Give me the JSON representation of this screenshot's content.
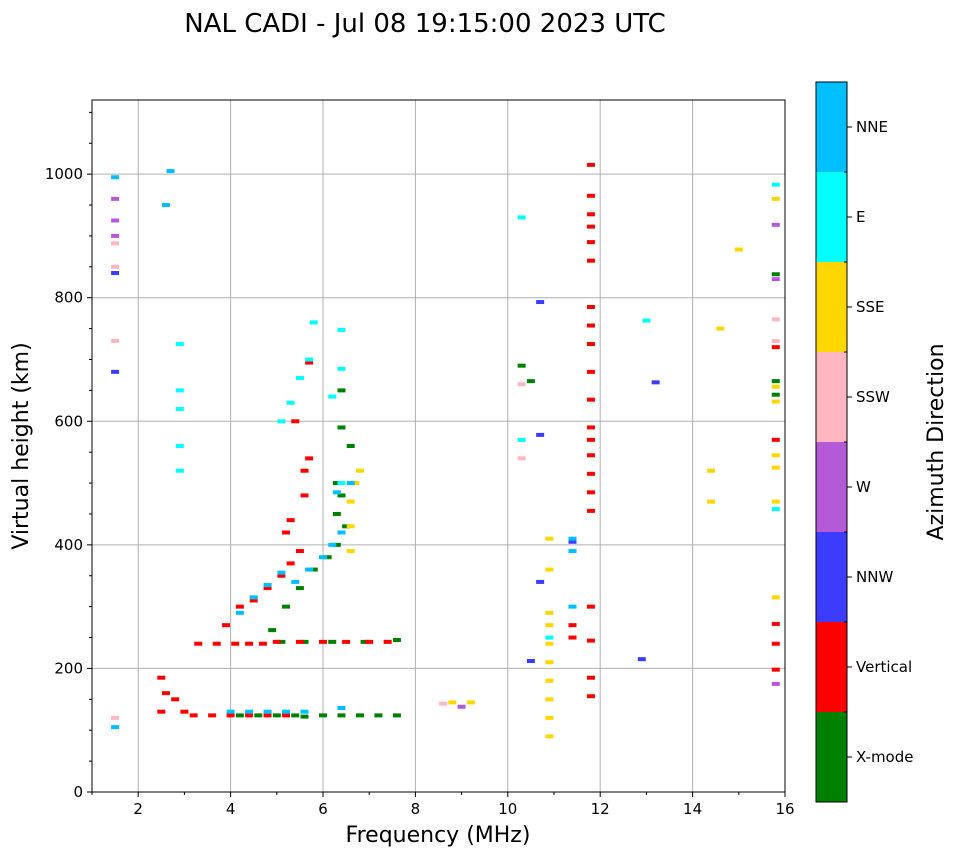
{
  "chart_data": {
    "type": "scatter",
    "title": "NAL CADI - Jul 08 19:15:00 2023 UTC",
    "xlabel": "Frequency (MHz)",
    "ylabel": "Virtual height (km)",
    "xlim": [
      1,
      16
    ],
    "ylim": [
      0,
      1120
    ],
    "xticks": [
      2,
      4,
      6,
      8,
      10,
      12,
      14,
      16
    ],
    "yticks": [
      0,
      200,
      400,
      600,
      800,
      1000
    ],
    "grid": true,
    "colorbar": {
      "label": "Azimuth Direction",
      "categories": [
        {
          "name": "X-mode",
          "color": "#008000"
        },
        {
          "name": "Vertical",
          "color": "#ff0000"
        },
        {
          "name": "NNW",
          "color": "#3c3cff"
        },
        {
          "name": "W",
          "color": "#b45ad8"
        },
        {
          "name": "SSW",
          "color": "#ffb6c1"
        },
        {
          "name": "SSE",
          "color": "#ffd700"
        },
        {
          "name": "E",
          "color": "#00ffff"
        },
        {
          "name": "NNE",
          "color": "#00bfff"
        }
      ]
    },
    "series": [
      {
        "name": "X-mode",
        "points": [
          [
            4.2,
            124
          ],
          [
            4.6,
            124
          ],
          [
            5.0,
            124
          ],
          [
            5.4,
            124
          ],
          [
            5.6,
            122
          ],
          [
            6.0,
            124
          ],
          [
            6.4,
            124
          ],
          [
            6.8,
            124
          ],
          [
            7.2,
            124
          ],
          [
            7.6,
            124
          ],
          [
            5.1,
            243
          ],
          [
            5.6,
            243
          ],
          [
            6.2,
            243
          ],
          [
            6.9,
            243
          ],
          [
            7.6,
            246
          ],
          [
            4.9,
            262
          ],
          [
            5.2,
            300
          ],
          [
            5.5,
            330
          ],
          [
            5.8,
            360
          ],
          [
            6.1,
            380
          ],
          [
            6.3,
            400
          ],
          [
            6.5,
            430
          ],
          [
            6.3,
            450
          ],
          [
            6.4,
            480
          ],
          [
            6.3,
            500
          ],
          [
            6.6,
            560
          ],
          [
            6.4,
            590
          ],
          [
            6.4,
            650
          ],
          [
            10.3,
            690
          ],
          [
            10.5,
            665
          ],
          [
            15.8,
            665
          ],
          [
            15.8,
            643
          ],
          [
            15.8,
            838
          ]
        ]
      },
      {
        "name": "Vertical",
        "points": [
          [
            2.5,
            130
          ],
          [
            2.6,
            160
          ],
          [
            2.5,
            185
          ],
          [
            2.8,
            150
          ],
          [
            3.0,
            130
          ],
          [
            3.2,
            124
          ],
          [
            3.6,
            124
          ],
          [
            4.0,
            124
          ],
          [
            4.4,
            124
          ],
          [
            4.8,
            124
          ],
          [
            5.2,
            124
          ],
          [
            3.3,
            240
          ],
          [
            3.7,
            240
          ],
          [
            4.1,
            240
          ],
          [
            4.4,
            240
          ],
          [
            4.7,
            240
          ],
          [
            5.0,
            243
          ],
          [
            5.5,
            243
          ],
          [
            6.0,
            243
          ],
          [
            6.5,
            243
          ],
          [
            7.0,
            243
          ],
          [
            7.4,
            243
          ],
          [
            3.9,
            270
          ],
          [
            4.2,
            300
          ],
          [
            4.5,
            310
          ],
          [
            4.8,
            330
          ],
          [
            5.1,
            350
          ],
          [
            5.3,
            370
          ],
          [
            5.5,
            390
          ],
          [
            5.2,
            420
          ],
          [
            5.3,
            440
          ],
          [
            5.6,
            480
          ],
          [
            5.6,
            520
          ],
          [
            5.7,
            540
          ],
          [
            5.4,
            600
          ],
          [
            5.7,
            695
          ],
          [
            11.4,
            250
          ],
          [
            11.4,
            270
          ],
          [
            11.8,
            155
          ],
          [
            11.8,
            185
          ],
          [
            11.8,
            245
          ],
          [
            11.8,
            300
          ],
          [
            11.8,
            455
          ],
          [
            11.8,
            485
          ],
          [
            11.8,
            515
          ],
          [
            11.8,
            545
          ],
          [
            11.8,
            570
          ],
          [
            11.8,
            590
          ],
          [
            11.8,
            635
          ],
          [
            11.8,
            680
          ],
          [
            11.8,
            725
          ],
          [
            11.8,
            755
          ],
          [
            11.8,
            785
          ],
          [
            11.8,
            860
          ],
          [
            11.8,
            890
          ],
          [
            11.8,
            915
          ],
          [
            11.8,
            935
          ],
          [
            11.8,
            965
          ],
          [
            11.8,
            1015
          ],
          [
            15.8,
            198
          ],
          [
            15.8,
            240
          ],
          [
            15.8,
            272
          ],
          [
            15.8,
            570
          ],
          [
            15.8,
            720
          ]
        ]
      },
      {
        "name": "NNW",
        "points": [
          [
            1.5,
            680
          ],
          [
            1.5,
            840
          ],
          [
            10.5,
            212
          ],
          [
            10.7,
            340
          ],
          [
            10.7,
            578
          ],
          [
            10.7,
            793
          ],
          [
            12.9,
            215
          ],
          [
            13.2,
            663
          ],
          [
            11.4,
            405
          ]
        ]
      },
      {
        "name": "W",
        "points": [
          [
            1.5,
            900
          ],
          [
            1.5,
            925
          ],
          [
            1.5,
            960
          ],
          [
            9.0,
            138
          ],
          [
            15.8,
            175
          ],
          [
            15.8,
            830
          ],
          [
            15.8,
            918
          ]
        ]
      },
      {
        "name": "SSW",
        "points": [
          [
            1.5,
            120
          ],
          [
            1.5,
            730
          ],
          [
            1.5,
            850
          ],
          [
            1.5,
            888
          ],
          [
            8.6,
            143
          ],
          [
            10.3,
            540
          ],
          [
            10.3,
            660
          ],
          [
            15.8,
            765
          ],
          [
            15.8,
            730
          ]
        ]
      },
      {
        "name": "SSE",
        "points": [
          [
            10.9,
            90
          ],
          [
            10.9,
            120
          ],
          [
            10.9,
            150
          ],
          [
            10.9,
            180
          ],
          [
            10.9,
            210
          ],
          [
            10.9,
            240
          ],
          [
            10.9,
            270
          ],
          [
            10.9,
            290
          ],
          [
            10.9,
            360
          ],
          [
            10.9,
            410
          ],
          [
            6.6,
            390
          ],
          [
            6.6,
            430
          ],
          [
            6.6,
            470
          ],
          [
            6.7,
            500
          ],
          [
            6.8,
            520
          ],
          [
            8.8,
            145
          ],
          [
            9.2,
            145
          ],
          [
            14.4,
            470
          ],
          [
            14.4,
            520
          ],
          [
            14.6,
            750
          ],
          [
            15.0,
            878
          ],
          [
            15.8,
            315
          ],
          [
            15.8,
            470
          ],
          [
            15.8,
            525
          ],
          [
            15.8,
            545
          ],
          [
            15.8,
            632
          ],
          [
            15.8,
            656
          ],
          [
            15.8,
            960
          ]
        ]
      },
      {
        "name": "E",
        "points": [
          [
            5.1,
            600
          ],
          [
            5.3,
            630
          ],
          [
            5.5,
            670
          ],
          [
            5.7,
            700
          ],
          [
            5.8,
            760
          ],
          [
            6.2,
            640
          ],
          [
            6.4,
            685
          ],
          [
            6.4,
            748
          ],
          [
            6.4,
            500
          ],
          [
            2.9,
            520
          ],
          [
            2.9,
            560
          ],
          [
            2.9,
            620
          ],
          [
            2.9,
            650
          ],
          [
            2.9,
            725
          ],
          [
            10.3,
            570
          ],
          [
            10.3,
            930
          ],
          [
            10.9,
            250
          ],
          [
            13.0,
            763
          ],
          [
            15.8,
            458
          ],
          [
            15.8,
            983
          ]
        ]
      },
      {
        "name": "NNE",
        "points": [
          [
            1.5,
            105
          ],
          [
            4.0,
            130
          ],
          [
            4.4,
            130
          ],
          [
            4.8,
            130
          ],
          [
            5.2,
            130
          ],
          [
            5.6,
            130
          ],
          [
            6.4,
            136
          ],
          [
            4.2,
            290
          ],
          [
            4.5,
            315
          ],
          [
            4.8,
            335
          ],
          [
            5.1,
            355
          ],
          [
            5.4,
            340
          ],
          [
            5.7,
            360
          ],
          [
            6.0,
            380
          ],
          [
            6.2,
            400
          ],
          [
            6.4,
            420
          ],
          [
            6.6,
            500
          ],
          [
            6.3,
            485
          ],
          [
            11.4,
            300
          ],
          [
            11.4,
            390
          ],
          [
            11.4,
            410
          ],
          [
            1.5,
            995
          ],
          [
            2.7,
            1005
          ],
          [
            2.6,
            950
          ]
        ]
      }
    ]
  }
}
